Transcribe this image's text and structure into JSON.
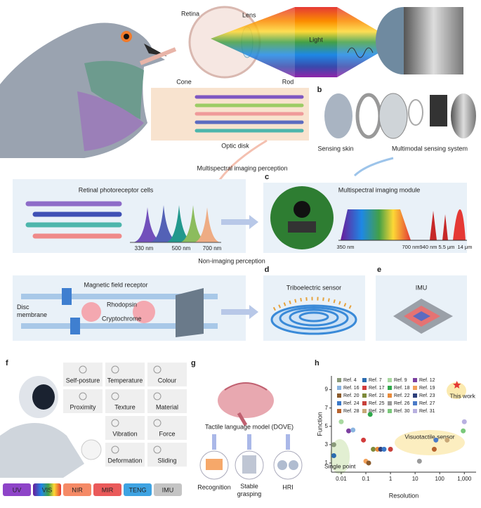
{
  "panel_a": {
    "retina": "Retina",
    "lens": "Lens",
    "light": "Light",
    "cone": "Cone",
    "rod": "Rod",
    "optic_disk": "Optic disk",
    "multispectral": "Multispectral imaging perception",
    "non_imaging": "Non-imaging perception",
    "photoreceptor_title": "Retinal photoreceptor cells",
    "wavelengths": [
      "330 nm",
      "500 nm",
      "700 nm"
    ],
    "magnetic_title": "Magnetic field receptor",
    "disc_membrane": "Disc membrane",
    "rhodopsin": "Rhodopsin",
    "cryptochrome": "Cryptochrome"
  },
  "panel_b": {
    "label": "b",
    "sensing_skin": "Sensing skin",
    "multimodal": "Multimodal sensing system"
  },
  "panel_c": {
    "label": "c",
    "title": "Multispectral imaging module",
    "wavelengths": [
      "350 nm",
      "700 nm",
      "940 nm",
      "5.5 μm",
      "14 μm"
    ]
  },
  "panel_d": {
    "label": "d",
    "title": "Triboelectric sensor"
  },
  "panel_e": {
    "label": "e",
    "title": "IMU"
  },
  "panel_f": {
    "label": "f",
    "capabilities": [
      "Self-posture",
      "Temperature",
      "Colour",
      "Proximity",
      "Texture",
      "Material",
      "Vibration",
      "Force",
      "Deformation",
      "Sliding"
    ],
    "modalities": [
      {
        "name": "UV",
        "color": "#8e44c8"
      },
      {
        "name": "VIS",
        "color": "#5cbf4a"
      },
      {
        "name": "NIR",
        "color": "#f58a66"
      },
      {
        "name": "MIR",
        "color": "#ea5a5a"
      },
      {
        "name": "TENG",
        "color": "#3ea3e2"
      },
      {
        "name": "IMU",
        "color": "#c4c4c4"
      }
    ]
  },
  "panel_g": {
    "label": "g",
    "title": "Tactile language model (DOVE)",
    "tasks": [
      "Recognition",
      "Stable grasping",
      "HRI"
    ]
  },
  "chart_data": {
    "type": "scatter",
    "label": "h",
    "x_label": "Resolution",
    "y_label": "Function",
    "log_x": true,
    "xlim": [
      0.004,
      3000
    ],
    "ylim": [
      0,
      10.5
    ],
    "xticks": [
      0.01,
      0.1,
      1,
      10,
      100,
      {
        "value": 1000,
        "label": "1,000"
      }
    ],
    "yticks": [
      1,
      3,
      5,
      7,
      9
    ],
    "annotations": [
      "Visuotactile sensor",
      "Single point"
    ],
    "series": [
      {
        "name": "Ref. 4",
        "color": "#8a9a7a",
        "x": [
          0.005
        ],
        "values": [
          3.0
        ]
      },
      {
        "name": "Ref. 7",
        "color": "#2b6cb0",
        "x": [
          0.005
        ],
        "values": [
          1.8
        ]
      },
      {
        "name": "Ref. 9",
        "color": "#a8d8a0",
        "x": [
          0.01
        ],
        "values": [
          5.5
        ]
      },
      {
        "name": "Ref. 12",
        "color": "#7b3fa0",
        "x": [
          0.02
        ],
        "values": [
          4.5
        ]
      },
      {
        "name": "Ref. 16",
        "color": "#8ab4e0",
        "x": [
          0.03
        ],
        "values": [
          4.6
        ]
      },
      {
        "name": "Ref. 17",
        "color": "#d23c3c",
        "x": [
          0.08
        ],
        "values": [
          3.5
        ]
      },
      {
        "name": "Ref. 18",
        "color": "#2ea84a",
        "x": [
          0.15
        ],
        "values": [
          6.3
        ]
      },
      {
        "name": "Ref. 19",
        "color": "#f2a15a",
        "x": [
          0.1
        ],
        "values": [
          1.2
        ]
      },
      {
        "name": "Ref. 20",
        "color": "#8b5a2b",
        "x": [
          0.13
        ],
        "values": [
          1.0
        ]
      },
      {
        "name": "Ref. 21",
        "color": "#7d8a3a",
        "x": [
          0.2
        ],
        "values": [
          2.5
        ]
      },
      {
        "name": "Ref. 22",
        "color": "#e88a3a",
        "x": [
          0.3
        ],
        "values": [
          2.5
        ]
      },
      {
        "name": "Ref. 23",
        "color": "#2c3e7a",
        "x": [
          0.4
        ],
        "values": [
          2.5
        ]
      },
      {
        "name": "Ref. 24",
        "color": "#3a78c8",
        "x": [
          0.55
        ],
        "values": [
          2.5
        ]
      },
      {
        "name": "Ref. 25",
        "color": "#c8403a",
        "x": [
          1
        ],
        "values": [
          2.5
        ]
      },
      {
        "name": "Ref. 26",
        "color": "#9a9a9a",
        "x": [
          15
        ],
        "values": [
          1.2
        ]
      },
      {
        "name": "Ref. 27",
        "color": "#4a7ac8",
        "x": [
          70
        ],
        "values": [
          3.5
        ]
      },
      {
        "name": "Ref. 28",
        "color": "#b8632e",
        "x": [
          60
        ],
        "values": [
          2.5
        ]
      },
      {
        "name": "Ref. 29",
        "color": "#c8a878",
        "x": [
          200
        ],
        "values": [
          3.5
        ]
      },
      {
        "name": "Ref. 30",
        "color": "#7ac87a",
        "x": [
          900
        ],
        "values": [
          4.5
        ]
      },
      {
        "name": "Ref. 31",
        "color": "#b8b0e0",
        "x": [
          1000
        ],
        "values": [
          5.5
        ]
      },
      {
        "name": "This work",
        "color": "#e53935",
        "x": [
          500
        ],
        "values": [
          9.5
        ]
      }
    ]
  }
}
